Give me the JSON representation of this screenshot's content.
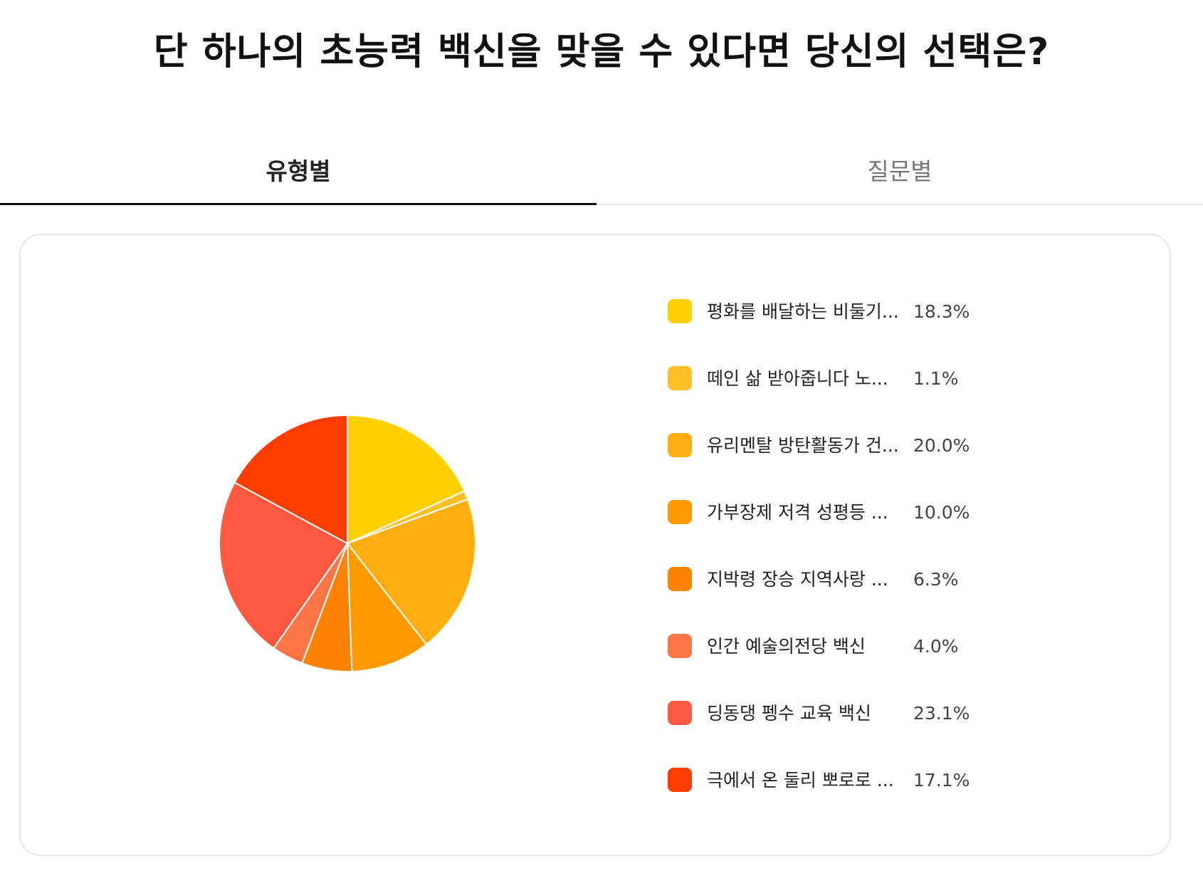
{
  "page": {
    "title": "단 하나의 초능력 백신을 맞을 수 있다면 당신의 선택은?"
  },
  "tabs": [
    {
      "label": "유형별",
      "active": true
    },
    {
      "label": "질문별",
      "active": false
    }
  ],
  "chart_data": {
    "type": "pie",
    "title": "",
    "legend_position": "right",
    "start_angle_deg": 0,
    "direction": "clockwise",
    "categories": [
      "평화를 배달하는 비둘기...",
      "떼인 삶 받아줍니다 노...",
      "유리멘탈 방탄활동가 건...",
      "가부장제 저격 성평등 ...",
      "지박령 장승 지역사랑 ...",
      "인간 예술의전당 백신",
      "딩동댕 펭수 교육 백신",
      "극에서 온 둘리 뽀로로 ..."
    ],
    "values": [
      18.3,
      1.1,
      20.0,
      10.0,
      6.3,
      4.0,
      23.1,
      17.1
    ],
    "value_labels": [
      "18.3%",
      "1.1%",
      "20.0%",
      "10.0%",
      "6.3%",
      "4.0%",
      "23.1%",
      "17.1%"
    ],
    "colors": [
      "#FFD000",
      "#FFBF26",
      "#FFAE12",
      "#FF9A00",
      "#FF8200",
      "#FF7646",
      "#FF5A40",
      "#FF3D00"
    ]
  }
}
